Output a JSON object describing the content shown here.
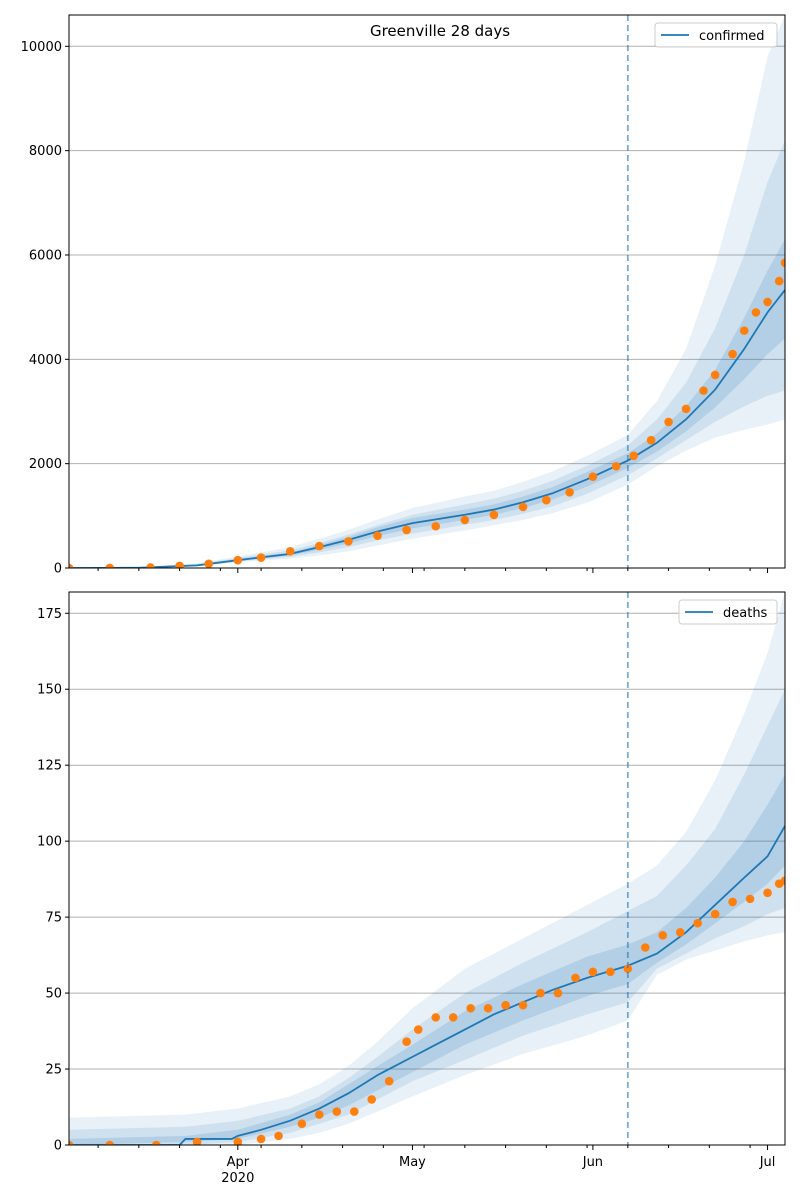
{
  "chart_data": [
    {
      "type": "line",
      "title": "Greenville 28 days",
      "xlabel": "",
      "ylabel": "",
      "x_range": [
        "2020-03-03",
        "2020-07-04"
      ],
      "ylim": [
        0,
        10600
      ],
      "y_ticks": [
        0,
        2000,
        4000,
        6000,
        8000,
        10000
      ],
      "x_ticks": [
        {
          "date": "2020-04-01",
          "label": "Apr",
          "sublabel": "2020"
        },
        {
          "date": "2020-05-01",
          "label": "May",
          "sublabel": ""
        },
        {
          "date": "2020-06-01",
          "label": "Jun",
          "sublabel": ""
        },
        {
          "date": "2020-07-01",
          "label": "Jul",
          "sublabel": ""
        }
      ],
      "grid": "horizontal",
      "legend": {
        "position": "top-right",
        "entries": [
          "confirmed"
        ]
      },
      "forecast_start": "2020-06-07",
      "colors": {
        "model": "#1f77b4",
        "observed": "#ff7f0e",
        "band": "#1f77b4"
      },
      "series": [
        {
          "name": "confirmed",
          "kind": "model-line",
          "points": [
            [
              "2020-03-03",
              0
            ],
            [
              "2020-03-15",
              5
            ],
            [
              "2020-03-25",
              50
            ],
            [
              "2020-04-01",
              150
            ],
            [
              "2020-04-10",
              270
            ],
            [
              "2020-04-15",
              400
            ],
            [
              "2020-04-20",
              540
            ],
            [
              "2020-04-25",
              700
            ],
            [
              "2020-05-01",
              860
            ],
            [
              "2020-05-10",
              1020
            ],
            [
              "2020-05-15",
              1120
            ],
            [
              "2020-05-20",
              1260
            ],
            [
              "2020-05-25",
              1430
            ],
            [
              "2020-05-31",
              1700
            ],
            [
              "2020-06-07",
              2060
            ],
            [
              "2020-06-12",
              2400
            ],
            [
              "2020-06-17",
              2850
            ],
            [
              "2020-06-22",
              3420
            ],
            [
              "2020-06-27",
              4200
            ],
            [
              "2020-07-01",
              4900
            ],
            [
              "2020-07-04",
              5330
            ]
          ]
        },
        {
          "name": "",
          "kind": "observed-points",
          "points": [
            [
              "2020-03-03",
              0
            ],
            [
              "2020-03-10",
              2
            ],
            [
              "2020-03-17",
              10
            ],
            [
              "2020-03-22",
              40
            ],
            [
              "2020-03-27",
              80
            ],
            [
              "2020-04-01",
              150
            ],
            [
              "2020-04-05",
              200
            ],
            [
              "2020-04-10",
              320
            ],
            [
              "2020-04-15",
              420
            ],
            [
              "2020-04-20",
              510
            ],
            [
              "2020-04-25",
              620
            ],
            [
              "2020-04-30",
              730
            ],
            [
              "2020-05-05",
              800
            ],
            [
              "2020-05-10",
              920
            ],
            [
              "2020-05-15",
              1020
            ],
            [
              "2020-05-20",
              1170
            ],
            [
              "2020-05-24",
              1300
            ],
            [
              "2020-05-28",
              1450
            ],
            [
              "2020-06-01",
              1750
            ],
            [
              "2020-06-05",
              1950
            ],
            [
              "2020-06-08",
              2150
            ],
            [
              "2020-06-11",
              2450
            ],
            [
              "2020-06-14",
              2800
            ],
            [
              "2020-06-17",
              3050
            ],
            [
              "2020-06-20",
              3400
            ],
            [
              "2020-06-22",
              3700
            ],
            [
              "2020-06-25",
              4100
            ],
            [
              "2020-06-27",
              4550
            ],
            [
              "2020-06-29",
              4900
            ],
            [
              "2020-07-01",
              5100
            ],
            [
              "2020-07-03",
              5500
            ],
            [
              "2020-07-04",
              5850
            ]
          ]
        }
      ],
      "bands": [
        {
          "level": "outer",
          "x": [
            "2020-03-03",
            "2020-03-15",
            "2020-03-25",
            "2020-04-01",
            "2020-04-10",
            "2020-04-15",
            "2020-04-20",
            "2020-04-25",
            "2020-05-01",
            "2020-05-10",
            "2020-05-15",
            "2020-05-20",
            "2020-05-25",
            "2020-05-31",
            "2020-06-07",
            "2020-06-12",
            "2020-06-17",
            "2020-06-22",
            "2020-06-27",
            "2020-07-01",
            "2020-07-04"
          ],
          "low": [
            0,
            0,
            30,
            110,
            180,
            240,
            320,
            430,
            560,
            720,
            820,
            920,
            1050,
            1250,
            1600,
            1950,
            2250,
            2500,
            2650,
            2750,
            2850
          ],
          "high": [
            0,
            20,
            90,
            220,
            400,
            560,
            730,
            930,
            1150,
            1370,
            1480,
            1650,
            1850,
            2150,
            2550,
            3200,
            4200,
            5800,
            7800,
            9800,
            10600
          ]
        },
        {
          "level": "middle",
          "x": [
            "2020-03-03",
            "2020-03-15",
            "2020-03-25",
            "2020-04-01",
            "2020-04-10",
            "2020-04-15",
            "2020-04-20",
            "2020-04-25",
            "2020-05-01",
            "2020-05-10",
            "2020-05-15",
            "2020-05-20",
            "2020-05-25",
            "2020-05-31",
            "2020-06-07",
            "2020-06-12",
            "2020-06-17",
            "2020-06-22",
            "2020-06-27",
            "2020-07-01",
            "2020-07-04"
          ],
          "low": [
            0,
            2,
            38,
            125,
            210,
            300,
            400,
            530,
            660,
            830,
            920,
            1040,
            1180,
            1420,
            1780,
            2100,
            2450,
            2800,
            3100,
            3300,
            3400
          ],
          "high": [
            0,
            12,
            72,
            195,
            340,
            480,
            640,
            820,
            1020,
            1220,
            1330,
            1480,
            1670,
            1960,
            2350,
            2850,
            3550,
            4600,
            6000,
            7400,
            8200
          ]
        },
        {
          "level": "inner",
          "x": [
            "2020-03-03",
            "2020-03-15",
            "2020-03-25",
            "2020-04-01",
            "2020-04-10",
            "2020-04-15",
            "2020-04-20",
            "2020-04-25",
            "2020-05-01",
            "2020-05-10",
            "2020-05-15",
            "2020-05-20",
            "2020-05-25",
            "2020-05-31",
            "2020-06-07",
            "2020-06-12",
            "2020-06-17",
            "2020-06-22",
            "2020-06-27",
            "2020-07-01",
            "2020-07-04"
          ],
          "low": [
            0,
            4,
            44,
            138,
            240,
            350,
            470,
            610,
            760,
            920,
            1020,
            1150,
            1310,
            1560,
            1920,
            2230,
            2620,
            3080,
            3620,
            4100,
            4400
          ],
          "high": [
            0,
            8,
            60,
            170,
            300,
            440,
            600,
            780,
            960,
            1120,
            1220,
            1370,
            1550,
            1840,
            2200,
            2580,
            3100,
            3800,
            4800,
            5700,
            6300
          ]
        }
      ]
    },
    {
      "type": "line",
      "title": "",
      "xlabel": "",
      "ylabel": "",
      "x_range": [
        "2020-03-03",
        "2020-07-04"
      ],
      "ylim": [
        0,
        182
      ],
      "y_ticks": [
        0,
        25,
        50,
        75,
        100,
        125,
        150,
        175
      ],
      "x_ticks": [
        {
          "date": "2020-04-01",
          "label": "Apr",
          "sublabel": "2020"
        },
        {
          "date": "2020-05-01",
          "label": "May",
          "sublabel": ""
        },
        {
          "date": "2020-06-01",
          "label": "Jun",
          "sublabel": ""
        },
        {
          "date": "2020-07-01",
          "label": "Jul",
          "sublabel": ""
        }
      ],
      "grid": "horizontal",
      "legend": {
        "position": "top-right",
        "entries": [
          "deaths"
        ]
      },
      "forecast_start": "2020-06-07",
      "colors": {
        "model": "#1f77b4",
        "observed": "#ff7f0e",
        "band": "#1f77b4"
      },
      "series": [
        {
          "name": "deaths",
          "kind": "model-line",
          "points": [
            [
              "2020-03-03",
              0
            ],
            [
              "2020-03-22",
              0
            ],
            [
              "2020-03-23",
              2
            ],
            [
              "2020-03-31",
              2
            ],
            [
              "2020-04-01",
              3
            ],
            [
              "2020-04-05",
              5
            ],
            [
              "2020-04-10",
              8
            ],
            [
              "2020-04-15",
              12
            ],
            [
              "2020-04-20",
              17
            ],
            [
              "2020-04-25",
              23
            ],
            [
              "2020-05-01",
              29
            ],
            [
              "2020-05-05",
              33
            ],
            [
              "2020-05-10",
              38
            ],
            [
              "2020-05-15",
              43
            ],
            [
              "2020-05-20",
              47
            ],
            [
              "2020-05-25",
              51
            ],
            [
              "2020-05-31",
              55
            ],
            [
              "2020-06-07",
              59
            ],
            [
              "2020-06-12",
              63
            ],
            [
              "2020-06-17",
              70
            ],
            [
              "2020-06-22",
              79
            ],
            [
              "2020-06-27",
              88
            ],
            [
              "2020-07-01",
              95
            ],
            [
              "2020-07-04",
              105
            ]
          ]
        },
        {
          "name": "",
          "kind": "observed-points",
          "points": [
            [
              "2020-03-03",
              0
            ],
            [
              "2020-03-10",
              0
            ],
            [
              "2020-03-18",
              0
            ],
            [
              "2020-03-25",
              1
            ],
            [
              "2020-04-01",
              1
            ],
            [
              "2020-04-05",
              2
            ],
            [
              "2020-04-08",
              3
            ],
            [
              "2020-04-12",
              7
            ],
            [
              "2020-04-15",
              10
            ],
            [
              "2020-04-18",
              11
            ],
            [
              "2020-04-21",
              11
            ],
            [
              "2020-04-24",
              15
            ],
            [
              "2020-04-27",
              21
            ],
            [
              "2020-04-30",
              34
            ],
            [
              "2020-05-02",
              38
            ],
            [
              "2020-05-05",
              42
            ],
            [
              "2020-05-08",
              42
            ],
            [
              "2020-05-11",
              45
            ],
            [
              "2020-05-14",
              45
            ],
            [
              "2020-05-17",
              46
            ],
            [
              "2020-05-20",
              46
            ],
            [
              "2020-05-23",
              50
            ],
            [
              "2020-05-26",
              50
            ],
            [
              "2020-05-29",
              55
            ],
            [
              "2020-06-01",
              57
            ],
            [
              "2020-06-04",
              57
            ],
            [
              "2020-06-07",
              58
            ],
            [
              "2020-06-10",
              65
            ],
            [
              "2020-06-13",
              69
            ],
            [
              "2020-06-16",
              70
            ],
            [
              "2020-06-19",
              73
            ],
            [
              "2020-06-22",
              76
            ],
            [
              "2020-06-25",
              80
            ],
            [
              "2020-06-28",
              81
            ],
            [
              "2020-07-01",
              83
            ],
            [
              "2020-07-03",
              86
            ],
            [
              "2020-07-04",
              87
            ]
          ]
        }
      ],
      "bands": [
        {
          "level": "outer",
          "x": [
            "2020-03-03",
            "2020-03-23",
            "2020-04-01",
            "2020-04-10",
            "2020-04-15",
            "2020-04-20",
            "2020-04-25",
            "2020-05-01",
            "2020-05-10",
            "2020-05-20",
            "2020-05-31",
            "2020-06-07",
            "2020-06-12",
            "2020-06-17",
            "2020-06-22",
            "2020-06-27",
            "2020-07-01",
            "2020-07-04"
          ],
          "low": [
            0,
            0,
            0,
            2,
            4,
            7,
            11,
            16,
            23,
            30,
            36,
            41,
            56,
            61,
            64,
            67,
            69,
            70
          ],
          "high": [
            9,
            10,
            12,
            16,
            20,
            26,
            34,
            45,
            58,
            68,
            79,
            86,
            92,
            103,
            120,
            142,
            162,
            182
          ]
        },
        {
          "level": "middle",
          "x": [
            "2020-03-03",
            "2020-03-23",
            "2020-04-01",
            "2020-04-10",
            "2020-04-15",
            "2020-04-20",
            "2020-04-25",
            "2020-05-01",
            "2020-05-10",
            "2020-05-20",
            "2020-05-31",
            "2020-06-07",
            "2020-06-12",
            "2020-06-17",
            "2020-06-22",
            "2020-06-27",
            "2020-07-01",
            "2020-07-04"
          ],
          "low": [
            0,
            0,
            1,
            4,
            7,
            10,
            15,
            21,
            28,
            36,
            43,
            47,
            58,
            63,
            68,
            72,
            76,
            78
          ],
          "high": [
            5,
            6,
            8,
            12,
            16,
            22,
            29,
            38,
            50,
            60,
            70,
            77,
            82,
            92,
            104,
            122,
            138,
            150
          ]
        },
        {
          "level": "inner",
          "x": [
            "2020-03-03",
            "2020-03-23",
            "2020-04-01",
            "2020-04-10",
            "2020-04-15",
            "2020-04-20",
            "2020-04-25",
            "2020-05-01",
            "2020-05-10",
            "2020-05-20",
            "2020-05-31",
            "2020-06-07",
            "2020-06-12",
            "2020-06-17",
            "2020-06-22",
            "2020-06-27",
            "2020-07-01",
            "2020-07-04"
          ],
          "low": [
            0,
            1,
            2,
            6,
            9,
            13,
            18,
            24,
            33,
            41,
            49,
            53,
            60,
            66,
            73,
            80,
            86,
            92
          ],
          "high": [
            2,
            3,
            5,
            10,
            14,
            20,
            26,
            33,
            44,
            53,
            62,
            66,
            70,
            78,
            88,
            100,
            112,
            122
          ]
        }
      ]
    }
  ]
}
